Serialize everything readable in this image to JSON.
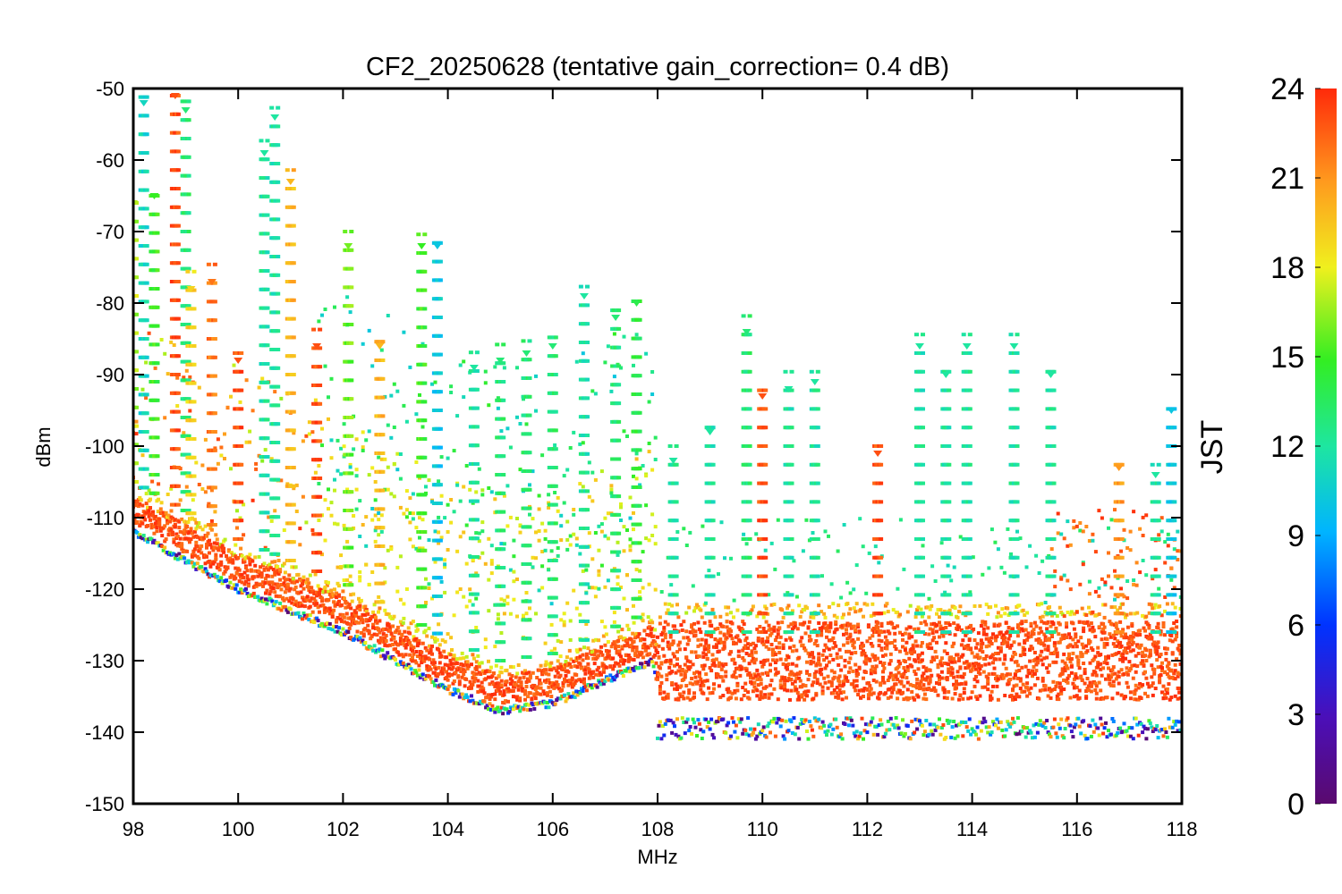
{
  "chart_data": {
    "type": "scatter",
    "title": "CF2_20250628 (tentative gain_correction=  0.4 dB)",
    "xlabel": "MHz",
    "ylabel": "dBm",
    "xlim": [
      98,
      118
    ],
    "ylim": [
      -150,
      -50
    ],
    "xticks": [
      98,
      100,
      102,
      104,
      106,
      108,
      110,
      112,
      114,
      116,
      118
    ],
    "yticks": [
      -50,
      -60,
      -70,
      -80,
      -90,
      -100,
      -110,
      -120,
      -130,
      -140,
      -150
    ],
    "colorbar": {
      "label": "JST",
      "range": [
        0,
        24
      ],
      "ticks": [
        0,
        3,
        6,
        9,
        12,
        15,
        18,
        21,
        24
      ],
      "colormap": "rainbow (purple → blue → cyan → green → yellow → orange → red)"
    },
    "noise_floor": [
      {
        "x": 98,
        "y": -109
      },
      {
        "x": 100,
        "y": -117
      },
      {
        "x": 102,
        "y": -123
      },
      {
        "x": 104,
        "y": -131
      },
      {
        "x": 105,
        "y": -134
      },
      {
        "x": 106,
        "y": -133
      },
      {
        "x": 107.9,
        "y": -127
      },
      {
        "x": 108,
        "y": -130
      },
      {
        "x": 118,
        "y": -130
      }
    ],
    "peaks": [
      {
        "x": 98.0,
        "top": -66,
        "jst": 17
      },
      {
        "x": 98.2,
        "top": -52,
        "jst": 11
      },
      {
        "x": 98.4,
        "top": -65,
        "jst": 15
      },
      {
        "x": 98.8,
        "top": -51,
        "jst": 23
      },
      {
        "x": 99.0,
        "top": -53,
        "jst": 13
      },
      {
        "x": 99.1,
        "top": -78,
        "jst": 19
      },
      {
        "x": 99.5,
        "top": -77,
        "jst": 22
      },
      {
        "x": 100.0,
        "top": -88,
        "jst": 23
      },
      {
        "x": 100.5,
        "top": -59,
        "jst": 12
      },
      {
        "x": 100.7,
        "top": -54,
        "jst": 12
      },
      {
        "x": 101.0,
        "top": -63,
        "jst": 20
      },
      {
        "x": 101.5,
        "top": -86,
        "jst": 23
      },
      {
        "x": 102.1,
        "top": -72,
        "jst": 16
      },
      {
        "x": 102.7,
        "top": -86,
        "jst": 20
      },
      {
        "x": 103.5,
        "top": -72,
        "jst": 15
      },
      {
        "x": 103.8,
        "top": -72,
        "jst": 10
      },
      {
        "x": 104.5,
        "top": -89,
        "jst": 12
      },
      {
        "x": 105.0,
        "top": -88,
        "jst": 13
      },
      {
        "x": 105.5,
        "top": -87,
        "jst": 13
      },
      {
        "x": 106.0,
        "top": -86,
        "jst": 13
      },
      {
        "x": 106.6,
        "top": -79,
        "jst": 12
      },
      {
        "x": 107.2,
        "top": -82,
        "jst": 13
      },
      {
        "x": 107.6,
        "top": -80,
        "jst": 14
      },
      {
        "x": 108.3,
        "top": -102,
        "jst": 12
      },
      {
        "x": 109.0,
        "top": -98,
        "jst": 12
      },
      {
        "x": 109.7,
        "top": -84,
        "jst": 13
      },
      {
        "x": 110.0,
        "top": -93,
        "jst": 23
      },
      {
        "x": 110.5,
        "top": -92,
        "jst": 12
      },
      {
        "x": 111.0,
        "top": -91,
        "jst": 12
      },
      {
        "x": 112.2,
        "top": -101,
        "jst": 23
      },
      {
        "x": 113.0,
        "top": -86,
        "jst": 12
      },
      {
        "x": 113.5,
        "top": -90,
        "jst": 12
      },
      {
        "x": 113.9,
        "top": -86,
        "jst": 12
      },
      {
        "x": 114.8,
        "top": -86,
        "jst": 12
      },
      {
        "x": 115.5,
        "top": -90,
        "jst": 12
      },
      {
        "x": 116.8,
        "top": -103,
        "jst": 21
      },
      {
        "x": 117.5,
        "top": -104,
        "jst": 12
      },
      {
        "x": 117.8,
        "top": -95,
        "jst": 10
      }
    ]
  }
}
